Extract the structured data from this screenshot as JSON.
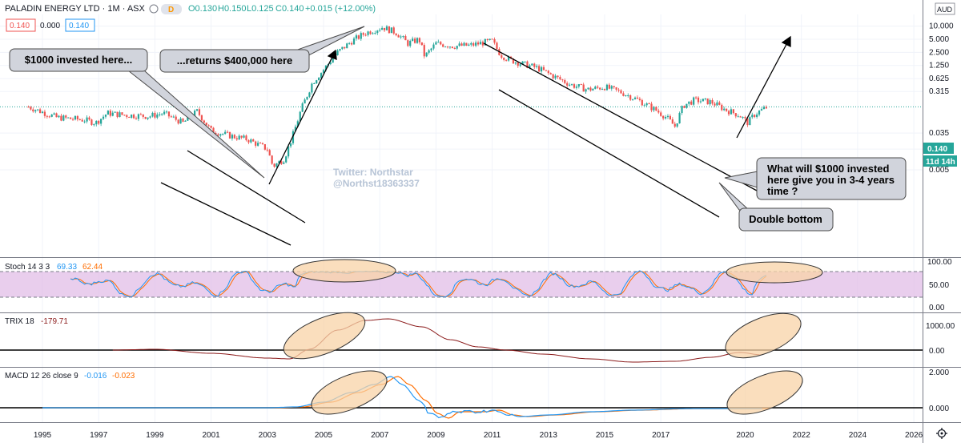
{
  "header": {
    "symbol": "PALADIN ENERGY LTD · 1M · ASX",
    "badge_d": "D",
    "ohlc": {
      "open": "O0.130",
      "high": "H0.150",
      "low": "L0.125",
      "close": "C0.140",
      "change": "+0.015 (+12.00%)"
    },
    "bid": "0.140",
    "spread": "0.000",
    "ask": "0.140",
    "currency": "AUD"
  },
  "colors": {
    "up": "#26a69a",
    "down": "#ef5350",
    "blue": "#2196f3",
    "orange": "#ff6d00",
    "stoch_band": "#e1bee7",
    "trix": "#8b1a1a",
    "callout": "#d1d4dc",
    "highlight": "#f8d3a7",
    "price_badge": "#26a69a"
  },
  "chart_data": [
    {
      "type": "candlestick",
      "title": "PALADIN ENERGY LTD · 1M · ASX",
      "scale": "log",
      "y_ticks": [
        "10.000",
        "5.000",
        "2.500",
        "1.250",
        "0.625",
        "0.315",
        "0.035",
        "0.015",
        "0.005"
      ],
      "x_ticks": [
        "1995",
        "1997",
        "1999",
        "2001",
        "2003",
        "2005",
        "2007",
        "2009",
        "2011",
        "2013",
        "2015",
        "2017",
        "2020",
        "2022",
        "2024",
        "2026"
      ],
      "price_badge": "0.140",
      "countdown_badge": "11d 14h",
      "close_series": {
        "x": [
          1994.5,
          1995.5,
          1996.5,
          1996.9,
          1997.3,
          1998.0,
          1998.8,
          1999.3,
          2000.0,
          2000.5,
          2001.0,
          2001.7,
          2002.3,
          2003.0,
          2003.2,
          2003.6,
          2003.9,
          2004.2,
          2004.6,
          2005.0,
          2005.5,
          2006.0,
          2006.5,
          2007.1,
          2007.6,
          2008.0,
          2008.4,
          2008.6,
          2009.0,
          2009.6,
          2010.2,
          2010.7,
          2011.0,
          2011.3,
          2011.6,
          2012.0,
          2012.6,
          2013.2,
          2013.8,
          2014.4,
          2015.0,
          2015.6,
          2016.2,
          2016.8,
          2017.2,
          2017.5,
          2017.8,
          2018.2,
          2018.8,
          2019.3,
          2019.8,
          2020.1,
          2020.3,
          2020.5,
          2020.8
        ],
        "y": [
          0.14,
          0.08,
          0.07,
          0.06,
          0.1,
          0.09,
          0.085,
          0.1,
          0.06,
          0.11,
          0.04,
          0.03,
          0.025,
          0.015,
          0.006,
          0.009,
          0.03,
          0.12,
          0.5,
          1.0,
          2.5,
          4.5,
          7.0,
          9.5,
          7.0,
          4.0,
          5.0,
          2.0,
          4.0,
          3.5,
          3.6,
          4.2,
          4.5,
          2.2,
          1.7,
          1.4,
          1.1,
          0.7,
          0.45,
          0.35,
          0.4,
          0.3,
          0.2,
          0.12,
          0.08,
          0.05,
          0.15,
          0.2,
          0.18,
          0.12,
          0.09,
          0.06,
          0.09,
          0.11,
          0.14
        ]
      }
    },
    {
      "type": "line",
      "title": "Stoch 14 3 3",
      "values_label": [
        "69.33",
        "62.44"
      ],
      "y_ticks": [
        "100.00",
        "50.00",
        "0.00"
      ],
      "series": [
        {
          "name": "%K"
        },
        {
          "name": "%D"
        }
      ]
    },
    {
      "type": "line",
      "title": "TRIX 18",
      "values_label": [
        "-179.71"
      ],
      "y_ticks": [
        "1000.00",
        "0.00"
      ]
    },
    {
      "type": "line",
      "title": "MACD 12 26 close 9",
      "values_label": [
        "-0.016",
        "-0.023"
      ],
      "y_ticks": [
        "2.000",
        "0.000"
      ]
    }
  ],
  "annotations": {
    "watermark_1": "Twitter: Northstar",
    "watermark_2": "@Northst18363337",
    "callout_1": "$1000 invested here...",
    "callout_2": "...returns $400,000 here",
    "callout_3_line1": "What will $1000 invested",
    "callout_3_line2": "here give you in 3-4 years",
    "callout_3_line3": "time ?",
    "callout_4": "Double bottom"
  },
  "icons": {
    "settings": "gear-icon",
    "zoom_top": "magnify-icon"
  }
}
